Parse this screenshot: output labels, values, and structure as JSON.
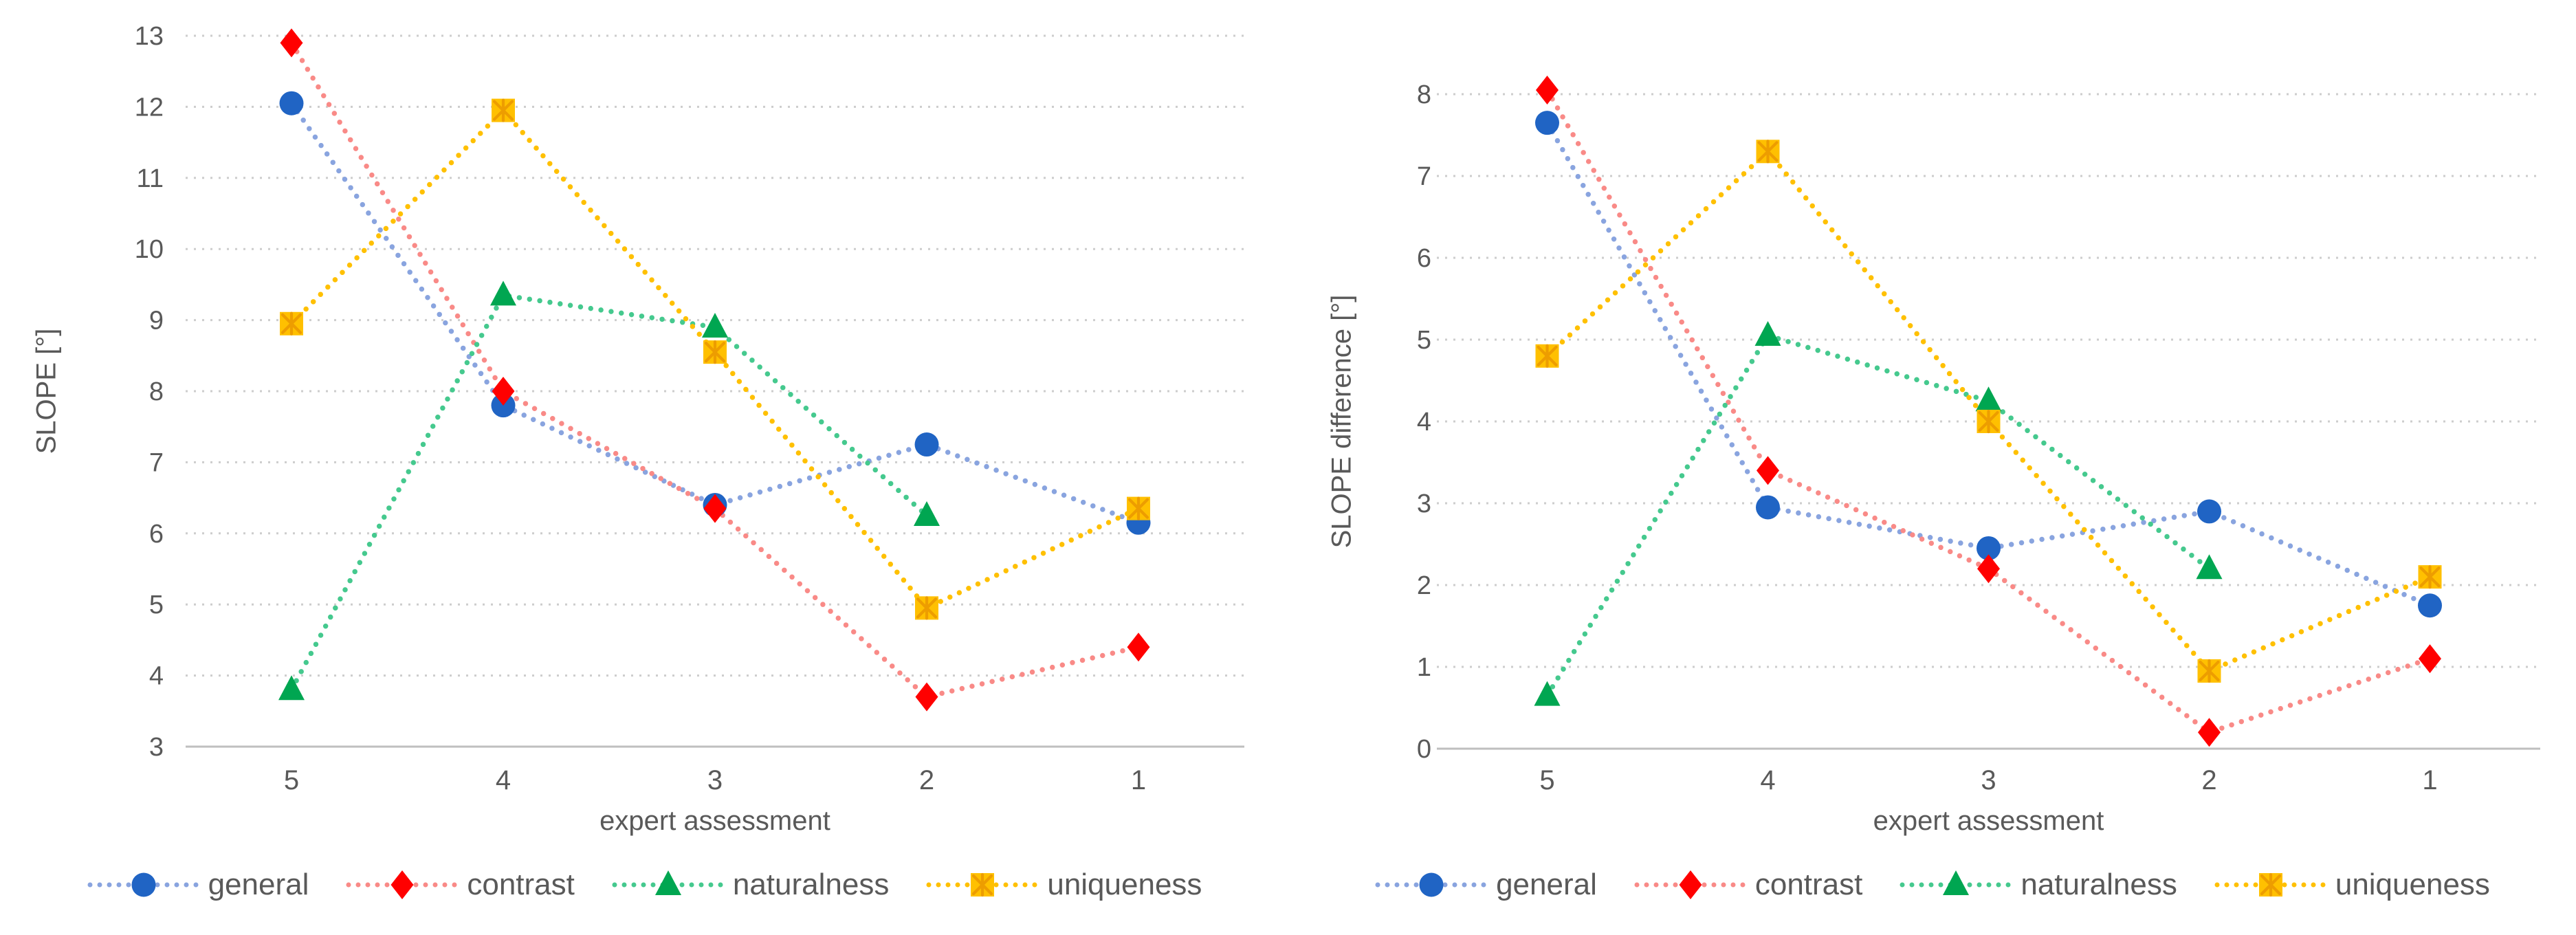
{
  "chart_data": [
    {
      "type": "line",
      "x_axis_title": "expert assessment",
      "y_axis_title": "SLOPE [°]",
      "categories": [
        "5",
        "4",
        "3",
        "2",
        "1"
      ],
      "ylim": [
        3,
        13
      ],
      "ytick_step": 1,
      "grid": true,
      "legend_position": "bottom",
      "series": [
        {
          "name": "general",
          "marker": "circle",
          "color": "#2064C4",
          "line_color": "#89A4DF",
          "values": [
            12.05,
            7.8,
            6.4,
            7.25,
            6.15
          ]
        },
        {
          "name": "contrast",
          "marker": "diamond",
          "color": "#FF0000",
          "line_color": "#F98A87",
          "values": [
            12.9,
            8.0,
            6.35,
            3.7,
            4.4
          ]
        },
        {
          "name": "naturalness",
          "marker": "triangle",
          "color": "#00A651",
          "line_color": "#45C98E",
          "values": [
            3.8,
            9.35,
            8.9,
            6.25,
            null
          ]
        },
        {
          "name": "uniqueness",
          "marker": "square-x",
          "color": "#FFC000",
          "line_color": "#FFC000",
          "pattern_color": "#ED9D00",
          "values": [
            8.95,
            11.95,
            8.55,
            4.95,
            6.35
          ]
        }
      ]
    },
    {
      "type": "line",
      "x_axis_title": "expert assessment",
      "y_axis_title": "SLOPE difference [°]",
      "categories": [
        "5",
        "4",
        "3",
        "2",
        "1"
      ],
      "ylim": [
        0,
        8
      ],
      "ytick_step": 1,
      "grid": true,
      "legend_position": "bottom",
      "series": [
        {
          "name": "general",
          "marker": "circle",
          "color": "#2064C4",
          "line_color": "#89A4DF",
          "values": [
            7.65,
            2.95,
            2.45,
            2.9,
            1.75
          ]
        },
        {
          "name": "contrast",
          "marker": "diamond",
          "color": "#FF0000",
          "line_color": "#F98A87",
          "values": [
            8.05,
            3.4,
            2.2,
            0.2,
            1.1
          ]
        },
        {
          "name": "naturalness",
          "marker": "triangle",
          "color": "#00A651",
          "line_color": "#45C98E",
          "values": [
            0.65,
            5.05,
            4.25,
            2.2,
            null
          ]
        },
        {
          "name": "uniqueness",
          "marker": "square-x",
          "color": "#FFC000",
          "line_color": "#FFC000",
          "pattern_color": "#ED9D00",
          "values": [
            4.8,
            7.3,
            4.0,
            0.95,
            2.1
          ]
        }
      ]
    }
  ],
  "legend": {
    "items": [
      {
        "label": "general",
        "series": "general"
      },
      {
        "label": "contrast",
        "series": "contrast"
      },
      {
        "label": "naturalness",
        "series": "naturalness"
      },
      {
        "label": "uniqueness",
        "series": "uniqueness"
      }
    ]
  },
  "style": {
    "text_color": "#595959",
    "grid_color": "#CDCDCD",
    "axis_color": "#BFBFBF",
    "background": "#FFFFFF"
  }
}
